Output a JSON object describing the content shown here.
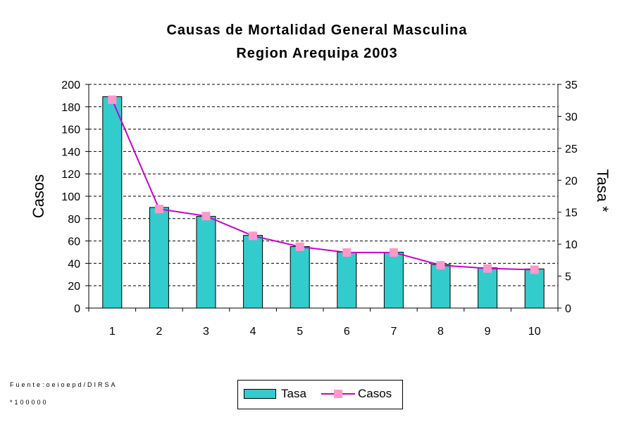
{
  "title_line1": "Causas de Mortalidad General Masculina",
  "title_line2": "Region Arequipa 2003",
  "footnote_source": "Fuente:oeioepd/DIRSA",
  "footnote_rate": "*100000",
  "colors": {
    "bar": "#33cccc",
    "line": "#cc00cc",
    "marker": "#ff99cc"
  },
  "chart_data": {
    "type": "bar",
    "categories": [
      "1",
      "2",
      "3",
      "4",
      "5",
      "6",
      "7",
      "8",
      "9",
      "10"
    ],
    "series": [
      {
        "name": "Tasa",
        "type": "bar",
        "axis": "left",
        "values": [
          189,
          90,
          82,
          65,
          55,
          50,
          50,
          39,
          36,
          35
        ]
      },
      {
        "name": "Casos",
        "type": "line",
        "axis": "right",
        "values": [
          32.6,
          15.5,
          14.4,
          11.3,
          9.6,
          8.7,
          8.7,
          6.7,
          6.2,
          6.0
        ]
      }
    ],
    "ylabel": "Casos",
    "y2label": "Tasa *",
    "ylim": [
      0,
      200
    ],
    "y2lim": [
      0,
      35
    ],
    "yticks": [
      "0",
      "20",
      "40",
      "60",
      "80",
      "100",
      "120",
      "140",
      "160",
      "180",
      "200"
    ],
    "y2ticks": [
      "0",
      "5",
      "10",
      "15",
      "20",
      "25",
      "30",
      "35"
    ],
    "grid": "horizontal dashed",
    "legend_position": "bottom"
  }
}
